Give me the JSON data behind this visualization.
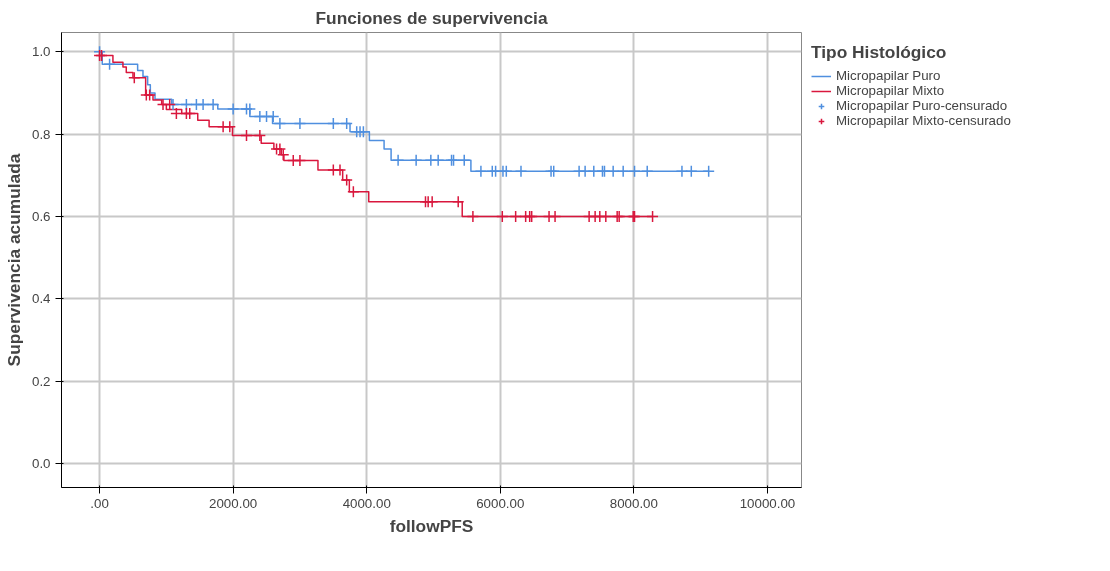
{
  "chart_data": {
    "type": "step",
    "title": "Funciones de supervivencia",
    "xlabel": "followPFS",
    "ylabel": "Supervivencia acumulada",
    "legend_title": "Tipo Histológico",
    "xlim": [
      -570,
      10510
    ],
    "ylim": [
      -0.058,
      1.047
    ],
    "xticks": [
      {
        "value": 0,
        "label": ".00"
      },
      {
        "value": 2000,
        "label": "2000.00"
      },
      {
        "value": 4000,
        "label": "4000.00"
      },
      {
        "value": 6000,
        "label": "6000.00"
      },
      {
        "value": 8000,
        "label": "8000.00"
      },
      {
        "value": 10000,
        "label": "10000.00"
      }
    ],
    "yticks": [
      {
        "value": 0,
        "label": "0.0"
      },
      {
        "value": 0.2,
        "label": "0.2"
      },
      {
        "value": 0.4,
        "label": "0.4"
      },
      {
        "value": 0.6,
        "label": "0.6"
      },
      {
        "value": 0.8,
        "label": "0.8"
      },
      {
        "value": 1.0,
        "label": "1.0"
      }
    ],
    "grid": true,
    "legend": "right",
    "series": [
      {
        "name": "Micropapilar Puro",
        "color": "#4f8fdf",
        "x": [
          0,
          40,
          570,
          650,
          720,
          760,
          830,
          1080,
          1770,
          2250,
          2590,
          3750,
          4040,
          4260,
          4365,
          5560,
          9120
        ],
        "values": [
          1.0,
          0.97,
          0.955,
          0.94,
          0.92,
          0.9,
          0.885,
          0.872,
          0.861,
          0.843,
          0.826,
          0.806,
          0.785,
          0.764,
          0.737,
          0.71,
          0.71
        ]
      },
      {
        "name": "Micropapilar Mixto",
        "color": "#d9173d",
        "x": [
          0,
          200,
          350,
          400,
          500,
          690,
          800,
          930,
          1000,
          1230,
          1470,
          1640,
          1990,
          2420,
          2610,
          2720,
          2760,
          3270,
          3640,
          3740,
          4030,
          5430,
          8280
        ],
        "values": [
          0.991,
          0.975,
          0.963,
          0.95,
          0.937,
          0.895,
          0.883,
          0.872,
          0.86,
          0.85,
          0.834,
          0.818,
          0.797,
          0.778,
          0.764,
          0.75,
          0.736,
          0.713,
          0.689,
          0.66,
          0.636,
          0.6,
          0.6
        ]
      },
      {
        "name": "Micropapilar Puro-censurado",
        "type": "scatter",
        "marker": "cross",
        "color": "#4f8fdf",
        "x": [
          0,
          150,
          1100,
          1300,
          1450,
          1550,
          1700,
          2000,
          2200,
          2250,
          2400,
          2500,
          2600,
          2700,
          3000,
          3500,
          3700,
          3850,
          3900,
          3950,
          4470,
          4740,
          4960,
          5070,
          5270,
          5300,
          5460,
          5710,
          5880,
          5930,
          6040,
          6090,
          6310,
          6760,
          6800,
          7180,
          7270,
          7400,
          7530,
          7560,
          7690,
          7840,
          8010,
          8200,
          8720,
          8860,
          9120
        ],
        "values": [
          1.0,
          0.97,
          0.872,
          0.872,
          0.872,
          0.872,
          0.872,
          0.861,
          0.861,
          0.861,
          0.843,
          0.843,
          0.843,
          0.826,
          0.826,
          0.826,
          0.826,
          0.806,
          0.806,
          0.806,
          0.737,
          0.737,
          0.737,
          0.737,
          0.737,
          0.737,
          0.737,
          0.71,
          0.71,
          0.71,
          0.71,
          0.71,
          0.71,
          0.71,
          0.71,
          0.71,
          0.71,
          0.71,
          0.71,
          0.71,
          0.71,
          0.71,
          0.71,
          0.71,
          0.71,
          0.71,
          0.71
        ]
      },
      {
        "name": "Micropapilar Mixto-censurado",
        "type": "scatter",
        "marker": "cross",
        "color": "#d9173d",
        "x": [
          0,
          30,
          520,
          700,
          750,
          950,
          1050,
          1150,
          1300,
          1350,
          1850,
          1950,
          2200,
          2400,
          2650,
          2700,
          2750,
          2900,
          3000,
          3500,
          3600,
          3700,
          3800,
          4880,
          4920,
          4980,
          5370,
          5590,
          6030,
          6230,
          6380,
          6440,
          6470,
          6730,
          6820,
          7330,
          7420,
          7490,
          7580,
          7750,
          7780,
          7990,
          8010,
          8280
        ],
        "values": [
          0.991,
          0.991,
          0.937,
          0.895,
          0.895,
          0.872,
          0.872,
          0.85,
          0.85,
          0.85,
          0.818,
          0.818,
          0.797,
          0.797,
          0.764,
          0.764,
          0.75,
          0.736,
          0.736,
          0.713,
          0.713,
          0.689,
          0.66,
          0.636,
          0.636,
          0.636,
          0.636,
          0.6,
          0.6,
          0.6,
          0.6,
          0.6,
          0.6,
          0.6,
          0.6,
          0.6,
          0.6,
          0.6,
          0.6,
          0.6,
          0.6,
          0.6,
          0.6,
          0.6
        ]
      }
    ]
  }
}
